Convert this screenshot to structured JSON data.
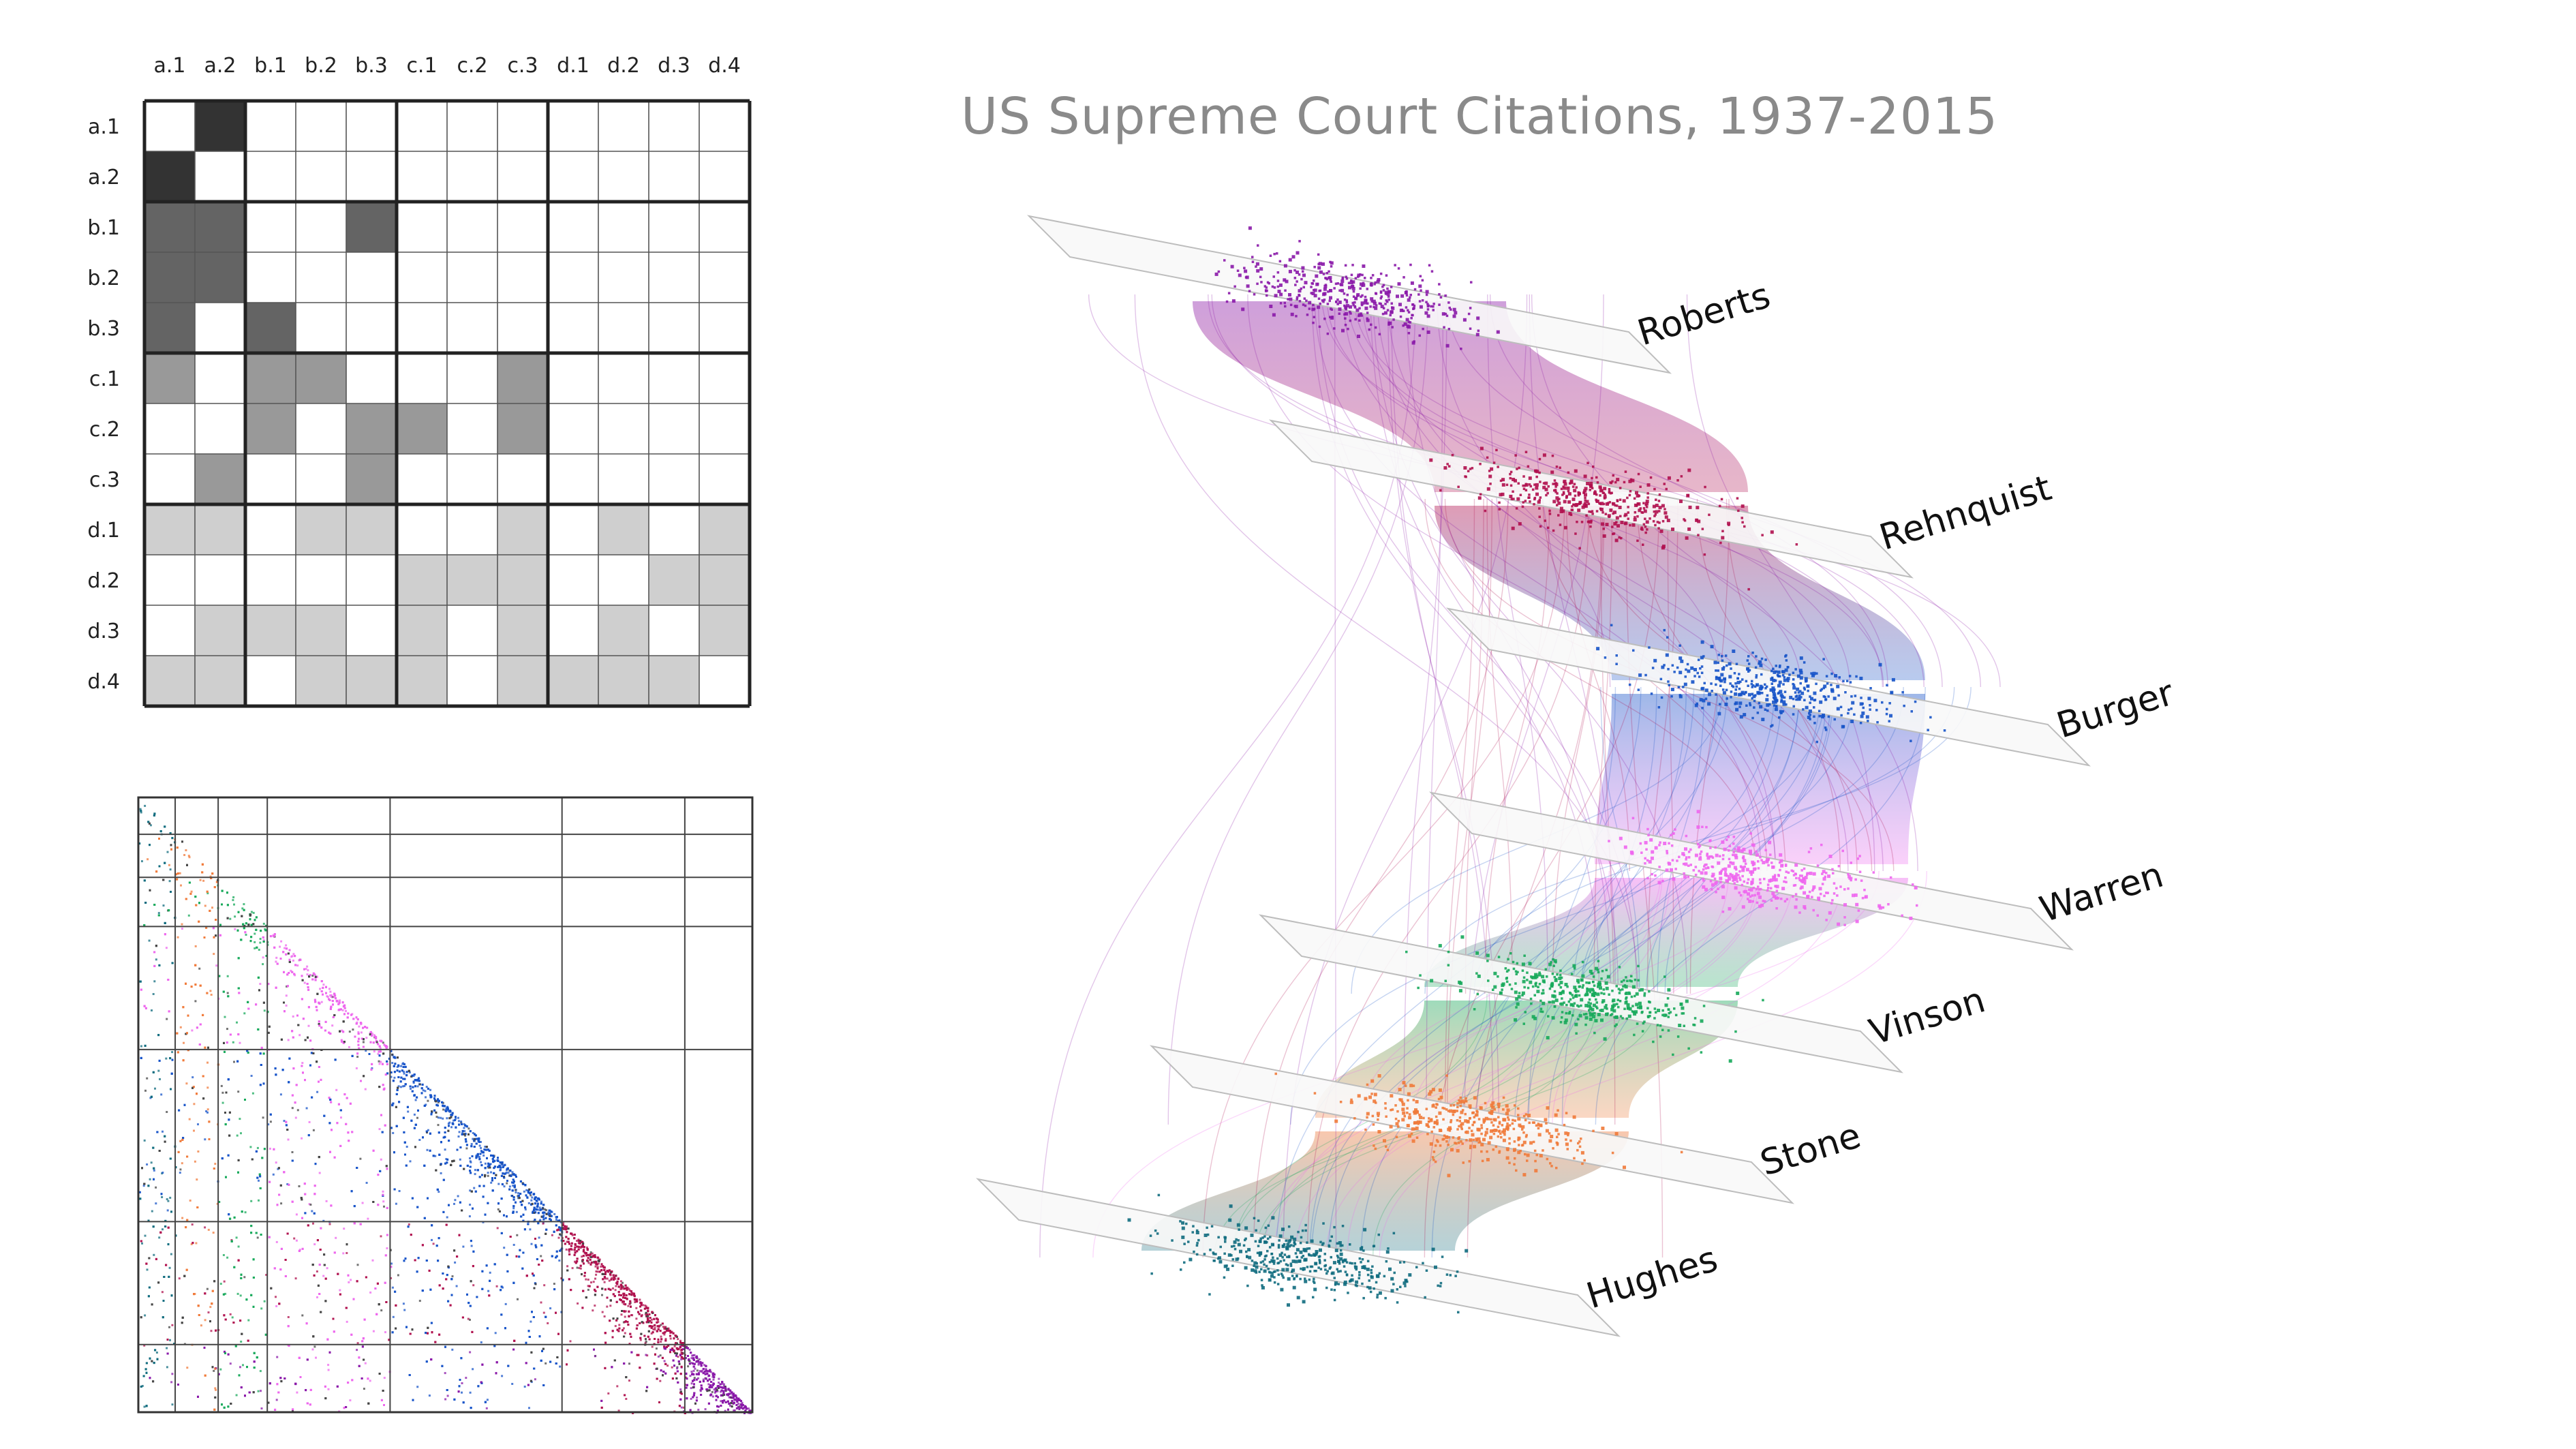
{
  "title": "US Supreme Court Citations, 1937-2015",
  "block_matrix": {
    "column_labels": [
      "a.1",
      "a.2",
      "b.1",
      "b.2",
      "b.3",
      "c.1",
      "c.2",
      "c.3",
      "d.1",
      "d.2",
      "d.3",
      "d.4"
    ],
    "row_labels": [
      "a.1",
      "a.2",
      "b.1",
      "b.2",
      "b.3",
      "c.1",
      "c.2",
      "c.3",
      "d.1",
      "d.2",
      "d.3",
      "d.4"
    ],
    "groups": [
      "a",
      "b",
      "c",
      "d"
    ],
    "group_colors": {
      "a": "#333333",
      "b": "#646464",
      "c": "#999999",
      "d": "#cfcfcf"
    },
    "filled_cells": [
      [
        0,
        1
      ],
      [
        1,
        0
      ],
      [
        2,
        0
      ],
      [
        2,
        1
      ],
      [
        2,
        4
      ],
      [
        3,
        0
      ],
      [
        3,
        1
      ],
      [
        4,
        0
      ],
      [
        4,
        2
      ],
      [
        5,
        0
      ],
      [
        5,
        2
      ],
      [
        5,
        3
      ],
      [
        5,
        7
      ],
      [
        6,
        2
      ],
      [
        6,
        4
      ],
      [
        6,
        5
      ],
      [
        6,
        7
      ],
      [
        7,
        1
      ],
      [
        7,
        4
      ],
      [
        8,
        0
      ],
      [
        8,
        1
      ],
      [
        8,
        3
      ],
      [
        8,
        4
      ],
      [
        8,
        7
      ],
      [
        8,
        9
      ],
      [
        8,
        11
      ],
      [
        9,
        5
      ],
      [
        9,
        6
      ],
      [
        9,
        7
      ],
      [
        9,
        10
      ],
      [
        9,
        11
      ],
      [
        10,
        1
      ],
      [
        10,
        2
      ],
      [
        10,
        3
      ],
      [
        10,
        5
      ],
      [
        10,
        7
      ],
      [
        10,
        9
      ],
      [
        10,
        11
      ],
      [
        11,
        0
      ],
      [
        11,
        1
      ],
      [
        11,
        3
      ],
      [
        11,
        4
      ],
      [
        11,
        5
      ],
      [
        11,
        7
      ],
      [
        11,
        8
      ],
      [
        11,
        9
      ],
      [
        11,
        10
      ]
    ]
  },
  "courts": [
    {
      "name": "Hughes",
      "color": "#0f6b7e"
    },
    {
      "name": "Stone",
      "color": "#f07a3a"
    },
    {
      "name": "Vinson",
      "color": "#16a85a"
    },
    {
      "name": "Warren",
      "color": "#ee66ee"
    },
    {
      "name": "Burger",
      "color": "#1653c8"
    },
    {
      "name": "Rehnquist",
      "color": "#b0104e"
    },
    {
      "name": "Roberts",
      "color": "#8a18a8"
    }
  ],
  "adjacency_matrix": {
    "era_share": [
      0.06,
      0.07,
      0.08,
      0.2,
      0.28,
      0.2,
      0.11
    ]
  }
}
